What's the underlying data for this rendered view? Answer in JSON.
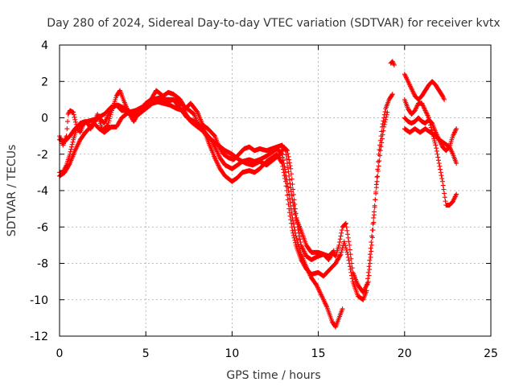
{
  "chart_data": {
    "type": "scatter",
    "title": "Day 280 of 2024, Sidereal Day-to-day VTEC variation (SDTVAR) for receiver kvtx",
    "xlabel": "GPS time / hours",
    "ylabel": "SDTVAR / TECUs",
    "xlim": [
      0,
      25
    ],
    "ylim": [
      -12,
      4
    ],
    "x_ticks": [
      "0",
      "5",
      "10",
      "15",
      "20",
      "25"
    ],
    "y_ticks": [
      "4",
      "2",
      "0",
      "-2",
      "-4",
      "-6",
      "-8",
      "-10",
      "-12"
    ],
    "grid": true,
    "marker": "plus",
    "color": "#ff0000",
    "series": [
      {
        "points": [
          [
            0.0,
            -1.0
          ],
          [
            0.2,
            -1.5
          ],
          [
            0.4,
            -1.0
          ],
          [
            0.5,
            0.2
          ],
          [
            0.6,
            0.4
          ],
          [
            0.8,
            0.3
          ],
          [
            1.0,
            -0.5
          ],
          [
            1.2,
            -0.8
          ],
          [
            1.4,
            -0.3
          ],
          [
            1.6,
            -0.2
          ],
          [
            1.8,
            -0.6
          ],
          [
            2.0,
            -0.3
          ],
          [
            2.2,
            0.2
          ],
          [
            2.5,
            -0.7
          ],
          [
            2.8,
            -0.4
          ],
          [
            3.0,
            0.3
          ],
          [
            3.3,
            1.2
          ],
          [
            3.5,
            1.5
          ],
          [
            3.7,
            1.0
          ],
          [
            4.0,
            0.3
          ],
          [
            4.3,
            -0.2
          ],
          [
            4.6,
            0.3
          ],
          [
            5.0,
            0.8
          ],
          [
            5.3,
            1.0
          ],
          [
            5.6,
            1.5
          ],
          [
            6.0,
            1.2
          ],
          [
            6.3,
            1.4
          ],
          [
            6.6,
            1.3
          ],
          [
            7.0,
            1.0
          ],
          [
            7.3,
            0.5
          ],
          [
            7.6,
            0.8
          ],
          [
            8.0,
            0.3
          ],
          [
            8.3,
            -0.4
          ],
          [
            8.6,
            -0.6
          ],
          [
            9.0,
            -1.0
          ],
          [
            9.2,
            -1.5
          ],
          [
            9.5,
            -2.0
          ],
          [
            9.8,
            -2.2
          ],
          [
            10.1,
            -2.3
          ],
          [
            10.4,
            -2.0
          ],
          [
            10.7,
            -1.7
          ],
          [
            11.0,
            -1.6
          ],
          [
            11.3,
            -1.8
          ],
          [
            11.6,
            -1.7
          ],
          [
            12.0,
            -1.8
          ],
          [
            12.3,
            -1.7
          ],
          [
            12.6,
            -1.6
          ],
          [
            12.9,
            -1.5
          ],
          [
            13.1,
            -1.8
          ],
          [
            13.3,
            -3.2
          ],
          [
            13.5,
            -4.5
          ],
          [
            13.7,
            -5.5
          ],
          [
            14.0,
            -6.2
          ],
          [
            14.3,
            -7.0
          ],
          [
            14.6,
            -7.4
          ],
          [
            15.0,
            -7.4
          ],
          [
            15.3,
            -7.5
          ],
          [
            15.6,
            -7.6
          ],
          [
            15.8,
            -7.4
          ],
          [
            16.0,
            -7.6
          ],
          [
            16.2,
            -7.0
          ],
          [
            16.4,
            -6.0
          ],
          [
            16.6,
            -5.8
          ],
          [
            16.8,
            -7.0
          ],
          [
            17.0,
            -8.5
          ],
          [
            17.3,
            -9.2
          ],
          [
            17.6,
            -9.6
          ],
          [
            17.9,
            -9.0
          ],
          [
            18.1,
            -7.0
          ],
          [
            18.3,
            -4.5
          ],
          [
            18.5,
            -2.0
          ],
          [
            18.7,
            -0.5
          ],
          [
            18.9,
            0.5
          ],
          [
            19.1,
            1.0
          ],
          [
            19.3,
            1.3
          ]
        ]
      },
      {
        "points": [
          [
            0.0,
            -3.0
          ],
          [
            0.2,
            -3.0
          ],
          [
            0.4,
            -2.6
          ],
          [
            0.6,
            -2.0
          ],
          [
            0.8,
            -1.2
          ],
          [
            1.0,
            -0.6
          ],
          [
            1.3,
            -0.4
          ],
          [
            1.6,
            -0.2
          ],
          [
            2.0,
            -0.1
          ],
          [
            2.3,
            0.0
          ],
          [
            2.6,
            -0.3
          ],
          [
            3.0,
            0.5
          ],
          [
            3.3,
            0.7
          ],
          [
            3.6,
            0.4
          ],
          [
            4.0,
            0.4
          ],
          [
            4.3,
            0.1
          ],
          [
            4.6,
            0.2
          ],
          [
            5.0,
            0.5
          ],
          [
            5.4,
            0.8
          ],
          [
            5.8,
            0.9
          ],
          [
            6.2,
            0.9
          ],
          [
            6.6,
            1.0
          ],
          [
            7.0,
            0.8
          ],
          [
            7.4,
            0.5
          ],
          [
            7.8,
            0.2
          ],
          [
            8.0,
            -0.3
          ],
          [
            8.2,
            -0.5
          ],
          [
            8.5,
            -1.0
          ],
          [
            8.7,
            -1.5
          ],
          [
            9.0,
            -2.2
          ],
          [
            9.3,
            -2.8
          ],
          [
            9.6,
            -3.2
          ],
          [
            10.0,
            -3.5
          ],
          [
            10.3,
            -3.3
          ],
          [
            10.6,
            -3.0
          ],
          [
            11.0,
            -2.9
          ],
          [
            11.3,
            -3.0
          ],
          [
            11.6,
            -2.8
          ],
          [
            12.0,
            -2.4
          ],
          [
            12.3,
            -2.2
          ],
          [
            12.6,
            -2.0
          ],
          [
            12.9,
            -2.5
          ],
          [
            13.1,
            -3.5
          ],
          [
            13.3,
            -5.0
          ],
          [
            13.5,
            -6.2
          ],
          [
            13.7,
            -7.0
          ],
          [
            14.0,
            -7.8
          ],
          [
            14.3,
            -8.3
          ],
          [
            14.6,
            -8.6
          ],
          [
            15.0,
            -8.5
          ],
          [
            15.3,
            -8.7
          ],
          [
            15.6,
            -8.4
          ],
          [
            16.0,
            -8.0
          ],
          [
            16.3,
            -7.5
          ],
          [
            16.5,
            -6.8
          ],
          [
            16.7,
            -7.5
          ],
          [
            17.0,
            -9.0
          ],
          [
            17.3,
            -9.8
          ],
          [
            17.6,
            -10.0
          ],
          [
            17.8,
            -9.5
          ],
          [
            18.0,
            -7.5
          ],
          [
            18.2,
            -5.5
          ],
          [
            18.4,
            -3.5
          ],
          [
            18.6,
            -1.8
          ],
          [
            18.8,
            -0.5
          ],
          [
            19.0,
            0.3
          ]
        ]
      },
      {
        "points": [
          [
            0.0,
            -3.2
          ],
          [
            0.3,
            -3.0
          ],
          [
            0.6,
            -2.5
          ],
          [
            0.9,
            -1.8
          ],
          [
            1.2,
            -1.2
          ],
          [
            1.5,
            -0.8
          ],
          [
            1.8,
            -0.5
          ],
          [
            2.2,
            0.0
          ],
          [
            2.6,
            0.2
          ],
          [
            3.0,
            0.6
          ],
          [
            3.4,
            0.7
          ],
          [
            3.8,
            0.5
          ],
          [
            4.2,
            0.2
          ],
          [
            4.6,
            0.3
          ],
          [
            5.0,
            0.8
          ],
          [
            5.4,
            1.0
          ],
          [
            5.8,
            1.1
          ],
          [
            6.2,
            1.0
          ],
          [
            6.6,
            1.0
          ],
          [
            7.0,
            0.5
          ],
          [
            7.4,
            0.0
          ],
          [
            7.8,
            -0.2
          ],
          [
            8.2,
            -0.5
          ],
          [
            8.6,
            -1.0
          ],
          [
            8.8,
            -1.2
          ],
          [
            9.0,
            -1.6
          ],
          [
            9.3,
            -2.2
          ],
          [
            9.6,
            -2.6
          ],
          [
            10.0,
            -2.8
          ],
          [
            10.3,
            -2.6
          ],
          [
            10.6,
            -2.4
          ],
          [
            11.0,
            -2.3
          ],
          [
            11.3,
            -2.4
          ],
          [
            11.6,
            -2.3
          ],
          [
            12.0,
            -2.1
          ],
          [
            12.3,
            -1.9
          ],
          [
            12.6,
            -1.7
          ],
          [
            12.9,
            -2.0
          ],
          [
            13.1,
            -3.0
          ],
          [
            13.3,
            -4.2
          ],
          [
            13.5,
            -5.5
          ],
          [
            13.7,
            -6.5
          ],
          [
            14.0,
            -7.5
          ],
          [
            14.3,
            -8.2
          ],
          [
            14.6,
            -8.8
          ],
          [
            14.9,
            -9.2
          ],
          [
            15.2,
            -9.8
          ],
          [
            15.5,
            -10.4
          ],
          [
            15.8,
            -11.2
          ],
          [
            16.0,
            -11.5
          ],
          [
            16.2,
            -11.0
          ],
          [
            16.4,
            -10.5
          ]
        ]
      },
      {
        "points": [
          [
            0.0,
            -1.2
          ],
          [
            0.3,
            -1.3
          ],
          [
            0.6,
            -1.0
          ],
          [
            0.9,
            -0.6
          ],
          [
            1.2,
            -0.3
          ],
          [
            1.5,
            -0.2
          ],
          [
            1.8,
            -0.5
          ],
          [
            2.0,
            -0.3
          ],
          [
            2.3,
            -0.6
          ],
          [
            2.6,
            -0.8
          ],
          [
            3.0,
            -0.5
          ],
          [
            3.3,
            -0.5
          ],
          [
            3.6,
            0.0
          ],
          [
            4.0,
            0.3
          ],
          [
            4.4,
            0.4
          ],
          [
            4.8,
            0.6
          ],
          [
            5.2,
            0.8
          ],
          [
            5.6,
            0.9
          ],
          [
            6.0,
            0.8
          ],
          [
            6.4,
            0.7
          ],
          [
            6.8,
            0.5
          ],
          [
            7.2,
            0.4
          ],
          [
            7.6,
            -0.2
          ],
          [
            8.0,
            -0.5
          ],
          [
            8.4,
            -0.8
          ],
          [
            8.8,
            -1.2
          ],
          [
            9.2,
            -1.5
          ],
          [
            9.6,
            -1.8
          ],
          [
            10.0,
            -2.0
          ],
          [
            10.4,
            -2.3
          ],
          [
            10.8,
            -2.5
          ],
          [
            11.2,
            -2.6
          ],
          [
            11.6,
            -2.4
          ],
          [
            12.0,
            -2.6
          ],
          [
            12.4,
            -2.3
          ],
          [
            12.8,
            -2.0
          ],
          [
            13.0,
            -1.6
          ],
          [
            13.2,
            -1.8
          ],
          [
            13.4,
            -2.8
          ],
          [
            13.6,
            -4.5
          ],
          [
            13.8,
            -6.0
          ],
          [
            14.0,
            -7.0
          ],
          [
            14.3,
            -7.6
          ],
          [
            14.6,
            -7.8
          ],
          [
            15.0,
            -7.6
          ],
          [
            15.3,
            -7.5
          ],
          [
            15.6,
            -7.8
          ],
          [
            15.9,
            -7.3
          ]
        ]
      },
      {
        "points": [
          [
            20.0,
            2.4
          ],
          [
            20.2,
            2.0
          ],
          [
            20.4,
            1.6
          ],
          [
            20.6,
            1.2
          ],
          [
            20.8,
            1.0
          ],
          [
            21.0,
            1.2
          ],
          [
            21.2,
            1.5
          ],
          [
            21.4,
            1.8
          ],
          [
            21.6,
            2.0
          ],
          [
            21.8,
            1.8
          ],
          [
            22.0,
            1.5
          ],
          [
            22.2,
            1.2
          ],
          [
            22.3,
            1.0
          ]
        ]
      },
      {
        "points": [
          [
            20.0,
            1.0
          ],
          [
            20.2,
            0.5
          ],
          [
            20.4,
            0.2
          ],
          [
            20.6,
            0.4
          ],
          [
            20.8,
            0.8
          ],
          [
            21.0,
            0.8
          ],
          [
            21.2,
            0.4
          ],
          [
            21.4,
            0.0
          ],
          [
            21.6,
            -0.8
          ],
          [
            21.8,
            -1.5
          ],
          [
            22.0,
            -2.5
          ],
          [
            22.2,
            -3.5
          ],
          [
            22.4,
            -4.8
          ],
          [
            22.6,
            -4.8
          ],
          [
            22.8,
            -4.6
          ],
          [
            23.0,
            -4.2
          ]
        ]
      },
      {
        "points": [
          [
            20.0,
            0.0
          ],
          [
            20.2,
            -0.2
          ],
          [
            20.4,
            -0.3
          ],
          [
            20.6,
            -0.2
          ],
          [
            20.8,
            0.0
          ],
          [
            21.0,
            -0.2
          ],
          [
            21.2,
            -0.3
          ],
          [
            21.4,
            -0.1
          ],
          [
            21.6,
            -0.3
          ],
          [
            21.8,
            -0.8
          ],
          [
            22.0,
            -1.2
          ],
          [
            22.2,
            -1.6
          ],
          [
            22.4,
            -1.8
          ],
          [
            22.6,
            -1.6
          ],
          [
            22.8,
            -1.0
          ],
          [
            23.0,
            -0.6
          ]
        ]
      },
      {
        "points": [
          [
            20.0,
            -0.6
          ],
          [
            20.3,
            -0.8
          ],
          [
            20.6,
            -0.6
          ],
          [
            20.9,
            -0.8
          ],
          [
            21.2,
            -0.6
          ],
          [
            21.5,
            -0.8
          ],
          [
            21.8,
            -1.0
          ],
          [
            22.0,
            -1.2
          ],
          [
            22.3,
            -1.4
          ],
          [
            22.6,
            -1.6
          ],
          [
            22.8,
            -2.0
          ],
          [
            23.0,
            -2.5
          ]
        ]
      },
      {
        "points": [
          [
            19.2,
            3.0
          ],
          [
            19.3,
            3.1
          ],
          [
            19.4,
            2.9
          ]
        ]
      }
    ]
  }
}
